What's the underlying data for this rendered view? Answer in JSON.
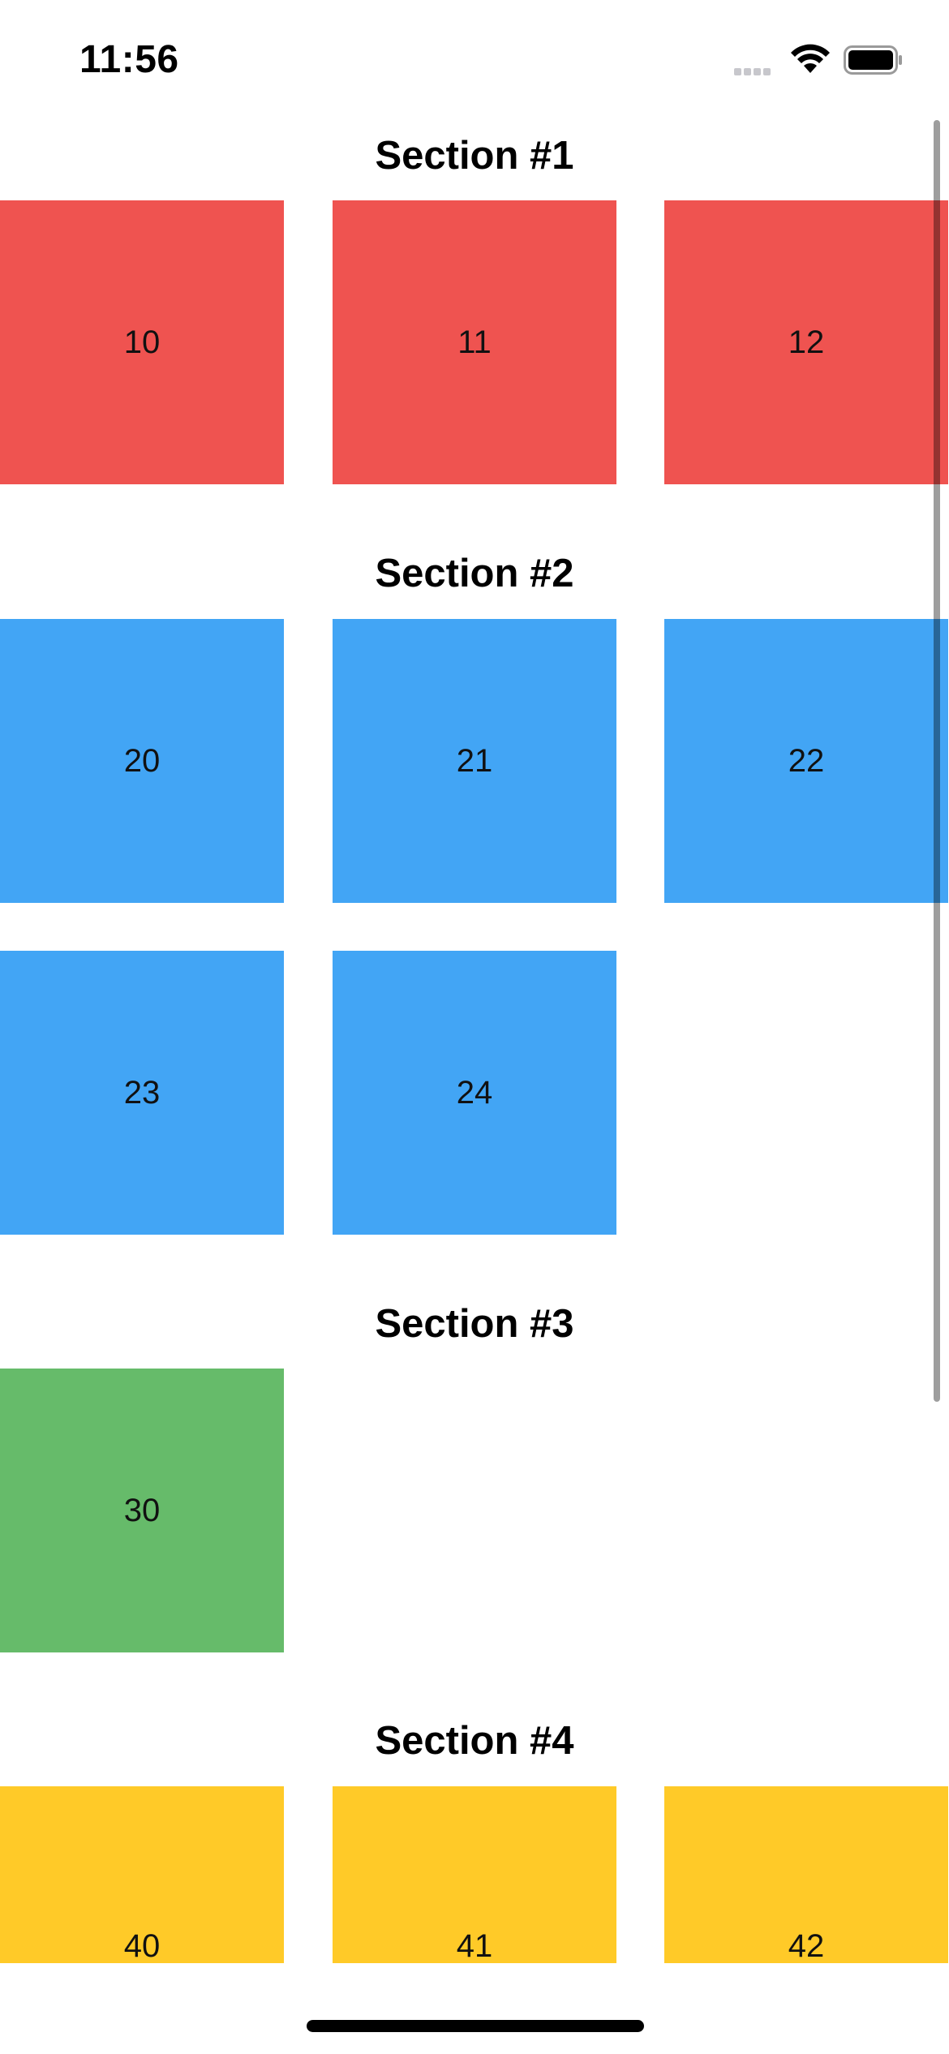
{
  "status_bar": {
    "time": "11:56",
    "signal_icon": "cellular-signal-icon",
    "wifi_icon": "wifi-icon",
    "battery_icon": "battery-icon"
  },
  "sections": [
    {
      "title": "Section #1",
      "color": "#ef5350",
      "items": [
        "10",
        "11",
        "12"
      ]
    },
    {
      "title": "Section #2",
      "color": "#42a5f5",
      "items": [
        "20",
        "21",
        "22",
        "23",
        "24"
      ]
    },
    {
      "title": "Section #3",
      "color": "#66bb6a",
      "items": [
        "30"
      ]
    },
    {
      "title": "Section #4",
      "color": "#ffca28",
      "items": [
        "40",
        "41",
        "42"
      ]
    }
  ]
}
